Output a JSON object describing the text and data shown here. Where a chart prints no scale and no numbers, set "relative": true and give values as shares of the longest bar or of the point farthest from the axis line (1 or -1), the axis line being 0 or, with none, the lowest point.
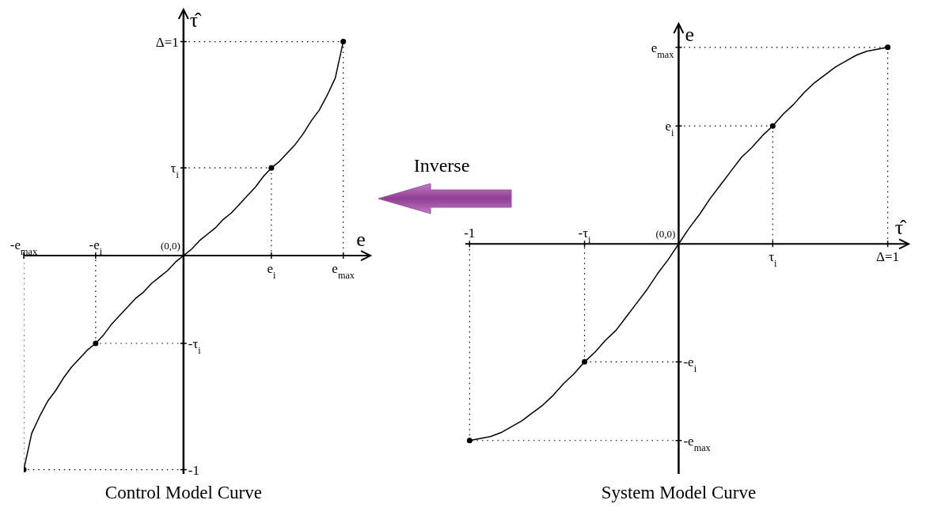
{
  "chart_data": [
    {
      "type": "line",
      "relative": true,
      "title": "Control Model Curve",
      "xlabel": "e",
      "ylabel": "τ̂",
      "categories": [
        "-e$_{max}$",
        null,
        null,
        null,
        null,
        null,
        null,
        null,
        null,
        "-e$_{i}$",
        null,
        null,
        null,
        null,
        null,
        null,
        null,
        null,
        null,
        null,
        null,
        null,
        null,
        null,
        null,
        null,
        null,
        null,
        null,
        null,
        null,
        "e$_{i}$",
        null,
        null,
        null,
        null,
        null,
        null,
        null,
        null,
        "e$_{max}$"
      ],
      "series": [
        {
          "color": "#000000",
          "marker": "none",
          "values": [
            -1,
            -0.83,
            -0.75,
            -0.68,
            -0.63,
            -0.57,
            -0.52,
            -0.48,
            -0.44,
            -0.41,
            -0.37,
            -0.32,
            -0.28,
            -0.24,
            -0.2,
            -0.17,
            -0.13,
            -0.1,
            -0.07,
            -0.03,
            0,
            0.03,
            0.07,
            0.1,
            0.13,
            0.17,
            0.2,
            0.24,
            0.28,
            0.32,
            0.37,
            0.41,
            0.44,
            0.48,
            0.52,
            0.57,
            0.63,
            0.68,
            0.75,
            0.83,
            1
          ]
        },
        {
          "type": "scatter",
          "color": "#000000",
          "marker": "circle",
          "line_style": "dotted",
          "values": [
            -1,
            null,
            null,
            null,
            null,
            null,
            null,
            null,
            null,
            -0.41,
            null,
            null,
            null,
            null,
            null,
            null,
            null,
            null,
            null,
            null,
            null,
            null,
            null,
            null,
            null,
            null,
            null,
            null,
            null,
            null,
            null,
            0.41,
            null,
            null,
            null,
            null,
            null,
            null,
            null,
            null,
            1
          ]
        }
      ],
      "ref_lines": [
        {
          "axis": "y",
          "value": 1,
          "label": "Δ=1",
          "line_style": "dotted"
        },
        {
          "axis": "y",
          "value": 0.41,
          "label": "τ$_{i}$",
          "line_style": "dotted"
        },
        {
          "axis": "y",
          "value": -0.41,
          "label": "-τ$_{i}$",
          "line_style": "dotted"
        },
        {
          "axis": "y",
          "value": -1,
          "label": "-1",
          "line_style": "dotted"
        }
      ],
      "annotations": [
        "(0,0)",
        "Inverse"
      ]
    },
    {
      "type": "line",
      "relative": true,
      "title": "System Model Curve",
      "xlabel": "τ̂",
      "ylabel": "e",
      "categories": [
        "-1",
        null,
        null,
        null,
        null,
        null,
        null,
        null,
        null,
        null,
        null,
        "-τ$_{i}$",
        null,
        null,
        null,
        null,
        null,
        null,
        null,
        null,
        null,
        null,
        null,
        null,
        null,
        null,
        null,
        null,
        null,
        "τ$_{i}$",
        null,
        null,
        null,
        null,
        null,
        null,
        null,
        null,
        null,
        null,
        "Δ=1"
      ],
      "series": [
        {
          "color": "#000000",
          "marker": "none",
          "values": [
            -1,
            -0.99,
            -0.98,
            -0.96,
            -0.93,
            -0.9,
            -0.86,
            -0.82,
            -0.77,
            -0.71,
            -0.66,
            -0.6,
            -0.55,
            -0.49,
            -0.44,
            -0.37,
            -0.3,
            -0.23,
            -0.15,
            -0.08,
            0,
            0.08,
            0.15,
            0.23,
            0.3,
            0.37,
            0.44,
            0.49,
            0.55,
            0.6,
            0.66,
            0.71,
            0.77,
            0.82,
            0.86,
            0.9,
            0.93,
            0.96,
            0.98,
            0.99,
            1
          ]
        },
        {
          "type": "scatter",
          "color": "#000000",
          "marker": "circle",
          "line_style": "dotted",
          "values": [
            -1,
            null,
            null,
            null,
            null,
            null,
            null,
            null,
            null,
            null,
            null,
            -0.6,
            null,
            null,
            null,
            null,
            null,
            null,
            null,
            null,
            null,
            null,
            null,
            null,
            null,
            null,
            null,
            null,
            null,
            0.6,
            null,
            null,
            null,
            null,
            null,
            null,
            null,
            null,
            null,
            null,
            1
          ]
        }
      ],
      "ref_lines": [
        {
          "axis": "y",
          "value": 1,
          "label": "e$_{max}$",
          "line_style": "dotted"
        },
        {
          "axis": "y",
          "value": 0.6,
          "label": "e$_{i}$",
          "line_style": "dotted"
        },
        {
          "axis": "y",
          "value": -0.6,
          "label": "-e$_{i}$",
          "line_style": "dotted"
        },
        {
          "axis": "y",
          "value": -1,
          "label": "-e$_{max}$",
          "line_style": "dotted"
        }
      ],
      "annotations": [
        "(0,0)"
      ]
    }
  ]
}
